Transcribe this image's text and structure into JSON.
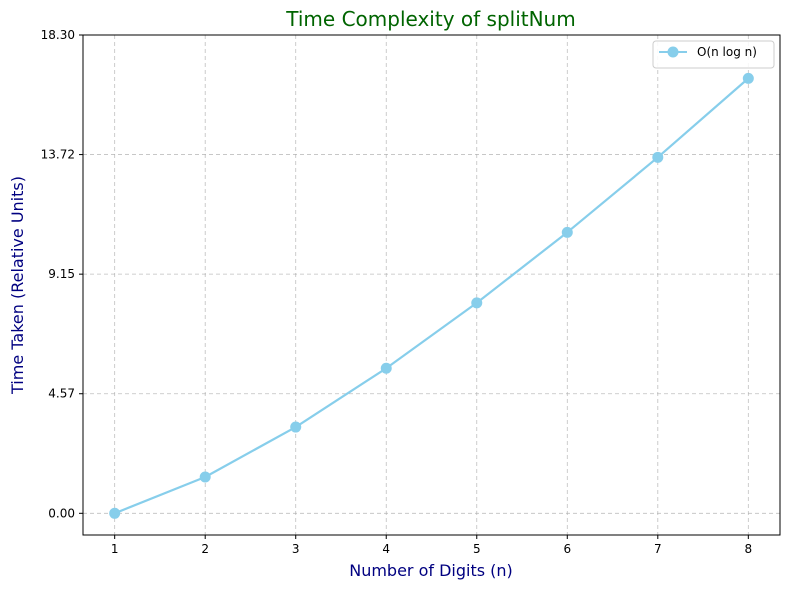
{
  "chart_data": {
    "type": "line",
    "title": "Time Complexity of splitNum",
    "xlabel": "Number of Digits (n)",
    "ylabel": "Time Taken (Relative Units)",
    "x": [
      1,
      2,
      3,
      4,
      5,
      6,
      7,
      8
    ],
    "x_ticks": [
      "1",
      "2",
      "3",
      "4",
      "5",
      "6",
      "7",
      "8"
    ],
    "y_ticks": [
      "0.00",
      "4.57",
      "9.15",
      "13.72",
      "18.30"
    ],
    "y_tick_values": [
      0,
      4.575,
      9.15,
      13.725,
      18.3
    ],
    "ylim": [
      -0.83,
      18.3
    ],
    "xlim": [
      0.65,
      8.35
    ],
    "grid": true,
    "legend_position": "top-right",
    "series": [
      {
        "name": "O(n log n)",
        "values": [
          0.0,
          1.39,
          3.3,
          5.55,
          8.05,
          10.75,
          13.62,
          16.64
        ],
        "color": "#87ceeb"
      }
    ],
    "colors": {
      "title": "#006400",
      "axis_label": "#000080",
      "line": "#87ceeb"
    }
  }
}
